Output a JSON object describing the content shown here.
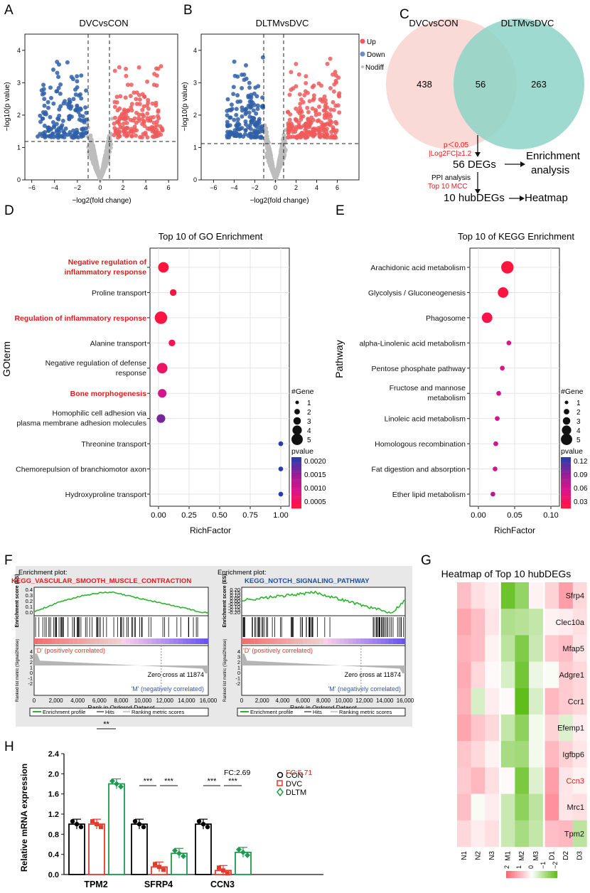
{
  "panels": {
    "A": "A",
    "B": "B",
    "C": "C",
    "D": "D",
    "E": "E",
    "F": "F",
    "G": "G",
    "H": "H"
  },
  "volcano": {
    "a_title": "DVCvsCON",
    "b_title": "DLTMvsDVC",
    "ylabel": "−log10(p value)",
    "xlabel": "−log2(fold change)",
    "a_xticks": [
      "−6",
      "−4",
      "−2",
      "0",
      "2",
      "4",
      "6"
    ],
    "b_xticks": [
      "−6",
      "−4",
      "−2",
      "0",
      "2",
      "4",
      "6"
    ],
    "yticks": [
      "0",
      "1",
      "2",
      "3",
      "4"
    ],
    "legend": [
      "Up",
      "Down",
      "Nodiff"
    ],
    "colors": {
      "up": "#ef5a5a",
      "down": "#2f5fa8",
      "nodiff": "#bdbdbd"
    }
  },
  "venn": {
    "left_label": "DVCvsCON",
    "right_label": "DLTMvsDVC",
    "left_only": "438",
    "overlap": "56",
    "right_only": "263",
    "criteria_1": "p＜0.05",
    "criteria_2": "|Log2FC|≥1.2",
    "degs": "56 DEGs",
    "enrichment": "Enrichment",
    "analysis": "analysis",
    "ppi": "PPI analysis",
    "mcc": "Top 10 MCC",
    "hub": "10 hubDEGs",
    "heatmap": "Heatmap"
  },
  "go": {
    "title": "Top 10 of GO Enrichment",
    "ylabel": "GOterm",
    "xlabel": "RichFactor",
    "xticks": [
      "0.00",
      "0.25",
      "0.50",
      "0.75",
      "1.00"
    ],
    "terms": [
      {
        "l1": "Negative regulation of",
        "l2": "inflammatory response",
        "rf": 0.04,
        "genes": 4,
        "p": 5e-05,
        "hl": true
      },
      {
        "l1": "Proline transport",
        "l2": "",
        "rf": 0.12,
        "genes": 2,
        "p": 0.0001,
        "hl": false
      },
      {
        "l1": "Regulation of inflammatory response",
        "l2": "",
        "rf": 0.02,
        "genes": 5,
        "p": 0.0001,
        "hl": true
      },
      {
        "l1": "Alanine transport",
        "l2": "",
        "rf": 0.11,
        "genes": 2,
        "p": 0.0002,
        "hl": false
      },
      {
        "l1": "Negative regulation of defense",
        "l2": "response",
        "rf": 0.03,
        "genes": 4,
        "p": 0.0004,
        "hl": false
      },
      {
        "l1": "Bone morphogenesis",
        "l2": "",
        "rf": 0.03,
        "genes": 3,
        "p": 0.0008,
        "hl": true
      },
      {
        "l1": "Homophilic cell adhesion via",
        "l2": "plasma membrane adhesion molecules",
        "rf": 0.02,
        "genes": 3,
        "p": 0.0016,
        "hl": false
      },
      {
        "l1": "Threonine transport",
        "l2": "",
        "rf": 1.0,
        "genes": 1,
        "p": 0.0021,
        "hl": false
      },
      {
        "l1": "Chemorepulsion of branchiomotor axon",
        "l2": "",
        "rf": 1.0,
        "genes": 1,
        "p": 0.0021,
        "hl": false
      },
      {
        "l1": "Hydroxyproline transport",
        "l2": "",
        "rf": 1.0,
        "genes": 1,
        "p": 0.0021,
        "hl": false
      }
    ],
    "gene_legend_title": "#Gene",
    "gene_legend": [
      "1",
      "2",
      "3",
      "4",
      "5"
    ],
    "pvalue_title": "pvalue",
    "pvalue_ticks": [
      "0.0020",
      "0.0015",
      "0.0010",
      "0.0005"
    ]
  },
  "kegg": {
    "title": "Top 10 of  KEGG Enrichment",
    "ylabel": "Pathway",
    "xlabel": "RichFactor",
    "xticks": [
      "0.00",
      "0.05",
      "0.10"
    ],
    "terms": [
      {
        "l1": "Arachidonic acid metabolism",
        "l2": "",
        "rf": 0.04,
        "genes": 5,
        "p": 0.005
      },
      {
        "l1": "Glycolysis / Gluconeogenesis",
        "l2": "",
        "rf": 0.034,
        "genes": 4,
        "p": 0.008
      },
      {
        "l1": "Phagosome",
        "l2": "",
        "rf": 0.012,
        "genes": 4,
        "p": 0.012
      },
      {
        "l1": "alpha-Linolenic acid metabolism",
        "l2": "",
        "rf": 0.042,
        "genes": 1,
        "p": 0.04
      },
      {
        "l1": "Pentose phosphate pathway",
        "l2": "",
        "rf": 0.033,
        "genes": 1,
        "p": 0.045
      },
      {
        "l1": "Fructose and mannose",
        "l2": "metabolism",
        "rf": 0.028,
        "genes": 1,
        "p": 0.05
      },
      {
        "l1": "Linoleic acid metabolism",
        "l2": "",
        "rf": 0.026,
        "genes": 1,
        "p": 0.05
      },
      {
        "l1": "Homologous recombination",
        "l2": "",
        "rf": 0.024,
        "genes": 1,
        "p": 0.05
      },
      {
        "l1": "Fat digestion and absorption",
        "l2": "",
        "rf": 0.023,
        "genes": 1,
        "p": 0.05
      },
      {
        "l1": "Ether lipid metabolism",
        "l2": "",
        "rf": 0.02,
        "genes": 1,
        "p": 0.06
      }
    ],
    "gene_legend_title": "#Gene",
    "gene_legend": [
      "1",
      "2",
      "3",
      "4",
      "5"
    ],
    "pvalue_title": "pvalue",
    "pvalue_ticks": [
      "0.12",
      "0.09",
      "0.06",
      "0.03"
    ]
  },
  "gsea": {
    "left_header": "Enrichment plot:",
    "left_name": "KEGG_VASCULAR_SMOOTH_MUSCLE_CONTRACTION",
    "right_header": "Enrichment plot:",
    "right_name": "KEGG_NOTCH_SIGNALING_PATHWAY",
    "es_label": "Enrichment score (ES)",
    "metric_label": "Ranked list metric (Signal2Noise)",
    "left_yticks": [
      "0.4",
      "0.3",
      "0.2",
      "0.1",
      "0.0"
    ],
    "right_yticks": [
      "0.20",
      "0.15",
      "0.10",
      "0.05",
      "0.00",
      "-0.05",
      "-0.10",
      "-0.15",
      "-0.20"
    ],
    "metric_yticks": [
      "4",
      "3",
      "2",
      "1",
      "0",
      "-1",
      "-2"
    ],
    "pos_label": "'D' (positively correlated)",
    "neg_label": "'M' (negatively correlated)",
    "zero_cross": "Zero cross at 11874",
    "xlabel": "Rank in Ordered Dataset",
    "left_xticks": [
      "0",
      "2,000",
      "4,000",
      "6,000",
      "8,000",
      "10,000",
      "12,000",
      "14,000",
      "16,000"
    ],
    "right_xticks": [
      "0",
      "2,000",
      "4,000",
      "6,000",
      "8,000",
      "10,000",
      "12,000",
      "14,000",
      "16,000"
    ],
    "legend": [
      "Enrichment profile",
      "Hits",
      "Ranking metric scores"
    ]
  },
  "heatmap": {
    "title": "Heatmap of Top 10 hubDEGs",
    "genes": [
      "Sfrp4",
      "Clec10a",
      "Mfap5",
      "Adgre1",
      "Ccr1",
      "Efemp1",
      "Igfbp6",
      "Ccn3",
      "Mrc1",
      "Tpm2"
    ],
    "highlight": "Ccn3",
    "samples": [
      "N1",
      "N2",
      "N3",
      "M1",
      "M2",
      "M3",
      "D1",
      "D2",
      "D3"
    ],
    "values": [
      [
        1.0,
        0.5,
        0.3,
        -2.2,
        -1.6,
        0.2,
        0.7,
        1.5,
        0.6
      ],
      [
        1.4,
        1.0,
        0.4,
        -1.2,
        -1.1,
        -0.9,
        0.2,
        0.3,
        0.5
      ],
      [
        1.2,
        1.0,
        0.2,
        -1.0,
        -1.9,
        -0.8,
        0.8,
        1.0,
        0.4
      ],
      [
        1.3,
        0.6,
        0.1,
        -0.6,
        -2.1,
        -0.3,
        -0.1,
        0.8,
        0.6
      ],
      [
        1.2,
        -0.6,
        0.3,
        0.1,
        -2.4,
        -0.6,
        1.1,
        0.8,
        0.6
      ],
      [
        1.4,
        0.9,
        0.6,
        -0.9,
        -1.7,
        -0.2,
        0.7,
        -0.5,
        0.3
      ],
      [
        0.9,
        0.6,
        0.2,
        -1.3,
        -1.4,
        -0.2,
        1.1,
        0.7,
        0.4
      ],
      [
        0.8,
        1.1,
        0.5,
        0.1,
        -2.0,
        -0.5,
        1.5,
        0.4,
        0.2
      ],
      [
        1.0,
        -0.1,
        0.3,
        -0.8,
        -1.7,
        -1.0,
        1.7,
        0.4,
        0.5
      ],
      [
        0.6,
        0.3,
        0.5,
        -0.8,
        -1.3,
        -0.9,
        1.0,
        1.1,
        -1.0
      ]
    ],
    "scale_ticks": [
      "2",
      "1",
      "0",
      "−1",
      "−2"
    ]
  },
  "qpcr": {
    "ylabel": "Relative mRNA expression",
    "yticks": [
      "0.0",
      "0.4",
      "0.8",
      "1.2",
      "1.6",
      "2.0",
      "2.4"
    ],
    "genes": [
      "TPM2",
      "SFRP4",
      "CCN3"
    ],
    "series": [
      {
        "name": "CON",
        "values": [
          1.0,
          1.0,
          1.0
        ],
        "color": "#000000"
      },
      {
        "name": "DVC",
        "values": [
          1.0,
          0.15,
          0.08
        ],
        "color": "#e8382b"
      },
      {
        "name": "DLTM",
        "values": [
          1.8,
          0.42,
          0.44
        ],
        "color": "#1f9a4f"
      }
    ],
    "sig": [
      "**",
      "***",
      "***",
      "***",
      "***"
    ],
    "fc1": "FC:2.69",
    "fc2": "FC:5.71"
  }
}
